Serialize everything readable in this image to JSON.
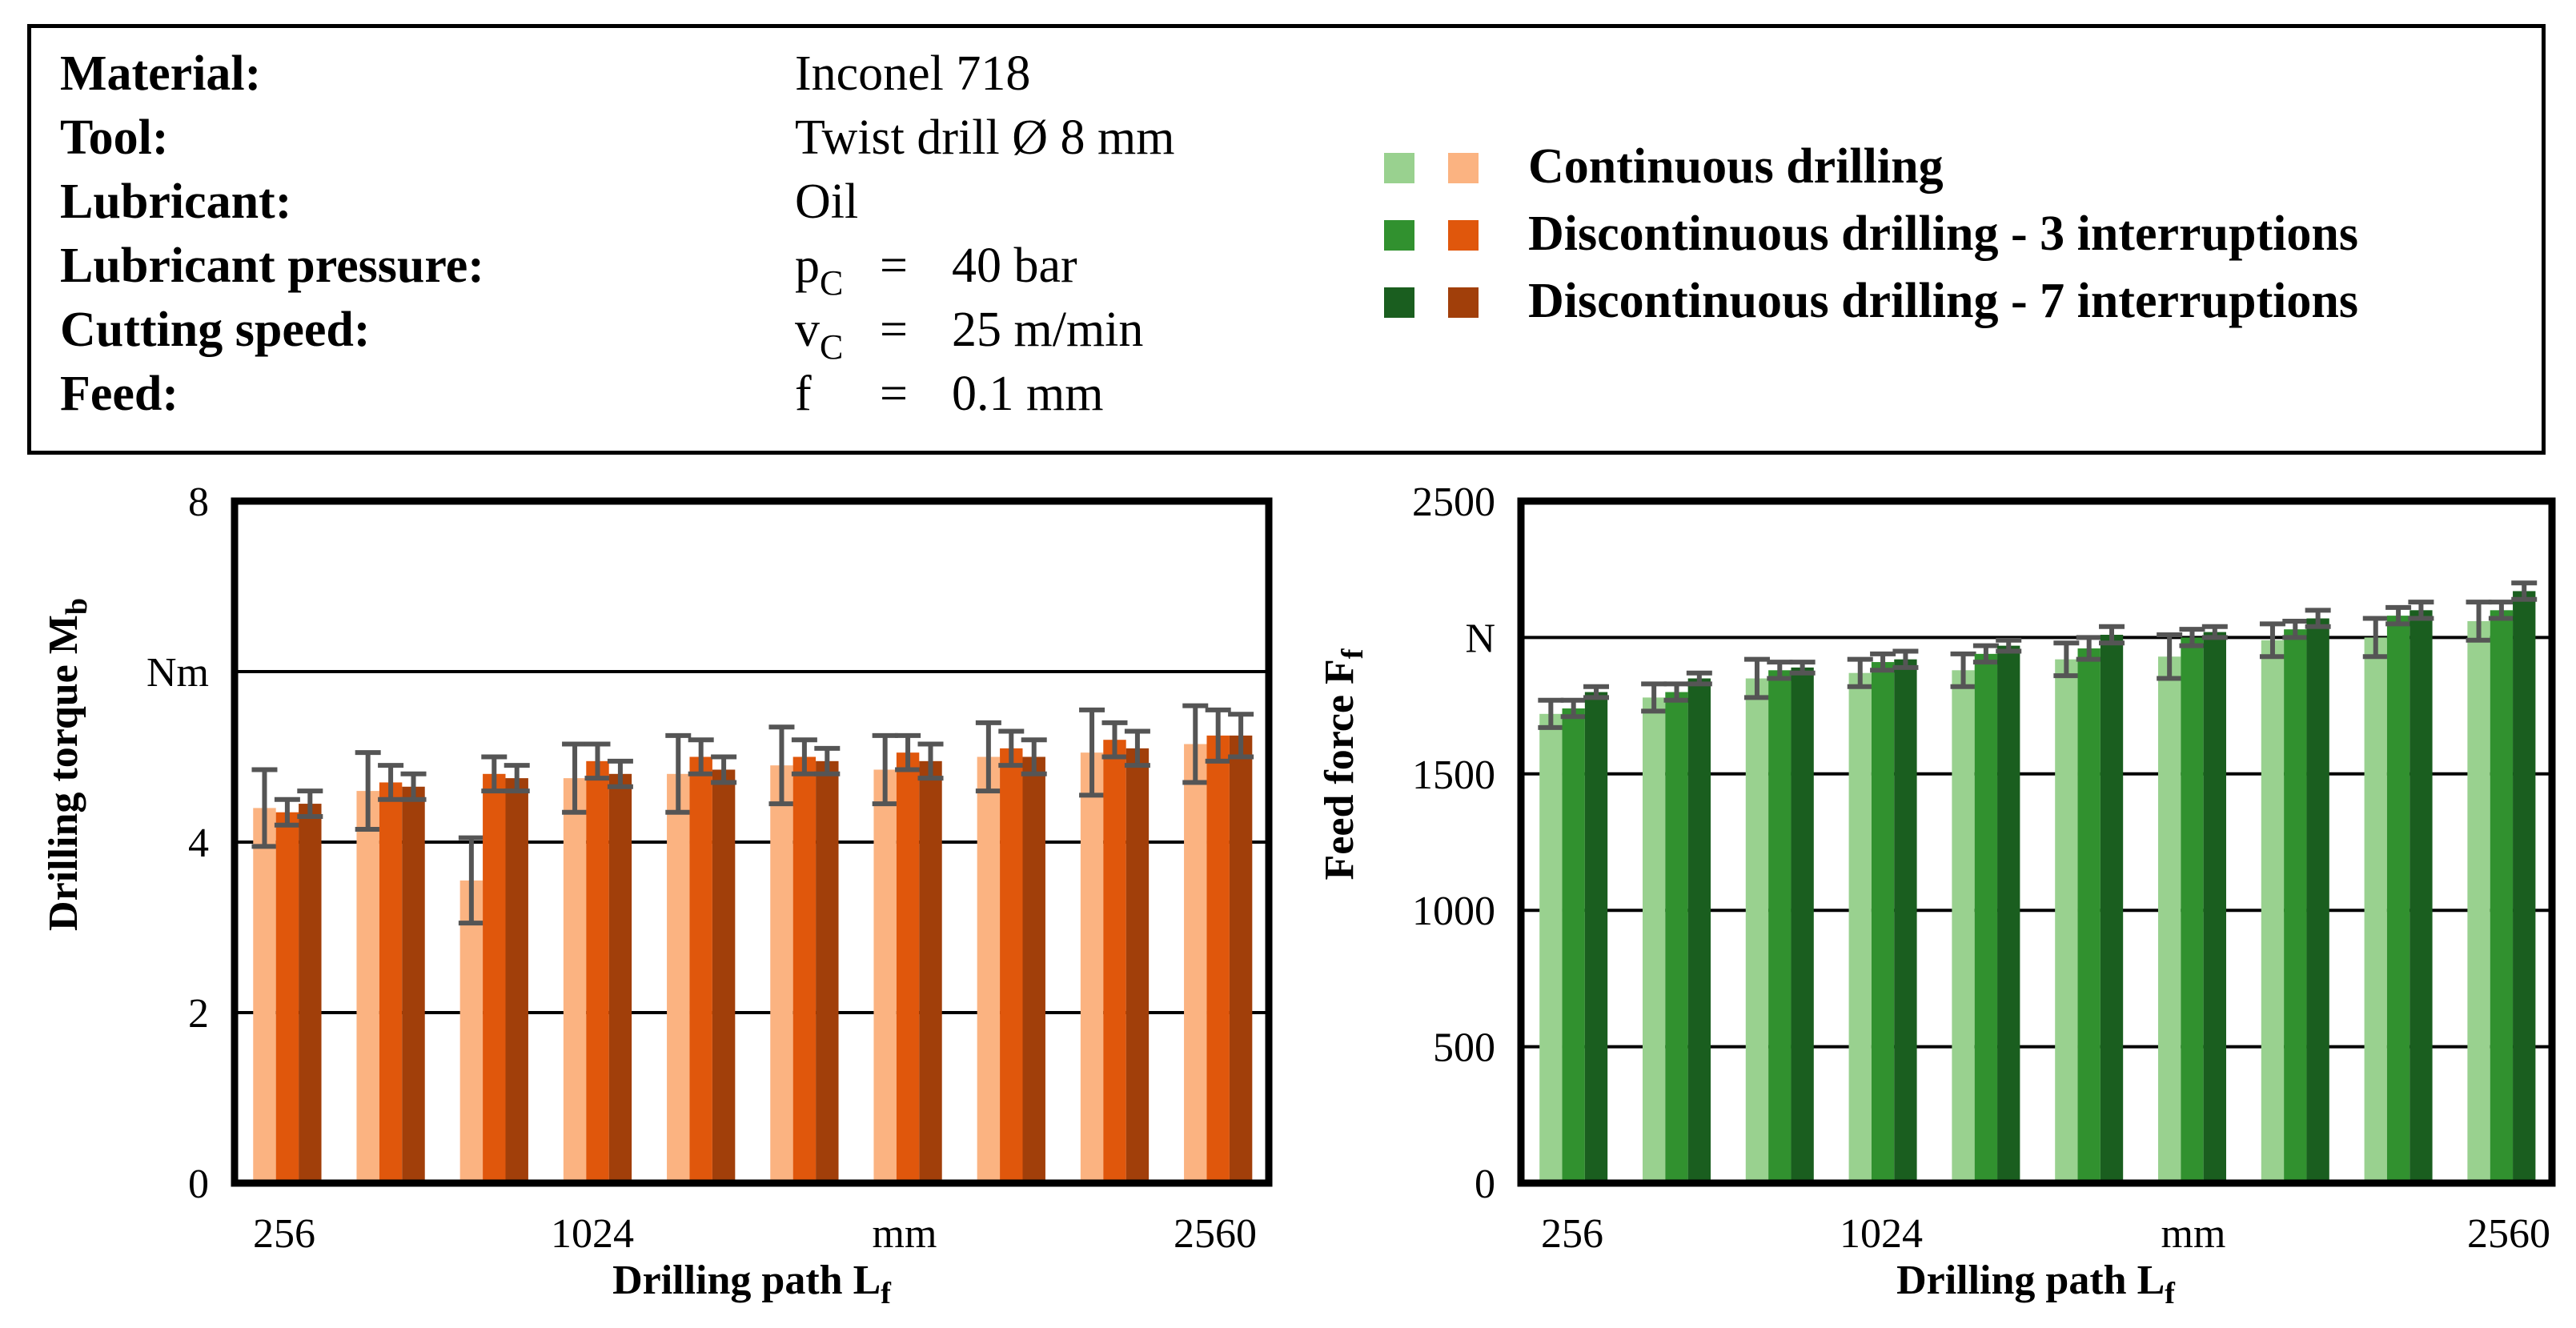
{
  "info": {
    "rows": [
      {
        "label": "Material:",
        "value": "Inconel 718"
      },
      {
        "label": "Tool:",
        "value": "Twist drill Ø 8 mm"
      },
      {
        "label": "Lubricant:",
        "value": "Oil"
      },
      {
        "label": "Lubricant pressure:",
        "sym": "p",
        "sub": "C",
        "eq": "=",
        "value": "40 bar"
      },
      {
        "label": "Cutting speed:",
        "sym": "v",
        "sub": "C",
        "eq": "=",
        "value": "25 m/min"
      },
      {
        "label": "Feed:",
        "sym": "f",
        "sub": "",
        "eq": "=",
        "value": "0.1 mm"
      }
    ]
  },
  "legend": [
    {
      "label": "Continuous drilling",
      "green": "#99d18f",
      "orange": "#fbb381"
    },
    {
      "label": "Discontinuous drilling - 3 interruptions",
      "green": "#31912f",
      "orange": "#e0570c"
    },
    {
      "label": "Discontinuous drilling - 7 interruptions",
      "green": "#1a5e1f",
      "orange": "#a13f0a"
    }
  ],
  "chart_data": [
    {
      "type": "bar",
      "title": "",
      "xlabel": "Drilling path L",
      "xlabel_sub": "f",
      "ylabel": "Drilling torque M",
      "ylabel_sub": "b",
      "ylim": [
        0,
        8
      ],
      "yticks": [
        "0",
        "2",
        "4",
        "Nm",
        "8"
      ],
      "xticks": [
        "256",
        "1024",
        "mm",
        "2560"
      ],
      "groups": 10,
      "series": [
        {
          "name": "Continuous drilling",
          "color": "#fbb381",
          "values": [
            4.4,
            4.6,
            3.55,
            4.75,
            4.8,
            4.9,
            4.85,
            5.0,
            5.05,
            5.15
          ],
          "errors": [
            0.45,
            0.45,
            0.5,
            0.4,
            0.45,
            0.45,
            0.4,
            0.4,
            0.5,
            0.45
          ]
        },
        {
          "name": "Discontinuous drilling - 3 interruptions",
          "color": "#e0570c",
          "values": [
            4.35,
            4.7,
            4.8,
            4.95,
            5.0,
            5.0,
            5.05,
            5.1,
            5.2,
            5.25
          ],
          "errors": [
            0.15,
            0.2,
            0.2,
            0.2,
            0.2,
            0.2,
            0.2,
            0.2,
            0.2,
            0.3
          ]
        },
        {
          "name": "Discontinuous drilling - 7 interruptions",
          "color": "#a13f0a",
          "values": [
            4.45,
            4.65,
            4.75,
            4.8,
            4.85,
            4.95,
            4.95,
            5.0,
            5.1,
            5.25
          ],
          "errors": [
            0.15,
            0.15,
            0.15,
            0.15,
            0.15,
            0.15,
            0.2,
            0.2,
            0.2,
            0.25
          ]
        }
      ]
    },
    {
      "type": "bar",
      "title": "",
      "xlabel": "Drilling path L",
      "xlabel_sub": "f",
      "ylabel": "Feed force F",
      "ylabel_sub": "f",
      "ylim": [
        0,
        2500
      ],
      "yticks": [
        "0",
        "500",
        "1000",
        "1500",
        "N",
        "2500"
      ],
      "xticks": [
        "256",
        "1024",
        "mm",
        "2560"
      ],
      "groups": 10,
      "series": [
        {
          "name": "Continuous drilling",
          "color": "#99d18f",
          "values": [
            1720,
            1780,
            1850,
            1870,
            1880,
            1920,
            1930,
            1990,
            2000,
            2060
          ],
          "errors": [
            50,
            50,
            70,
            50,
            60,
            60,
            80,
            60,
            70,
            70
          ]
        },
        {
          "name": "Discontinuous drilling - 3 interruptions",
          "color": "#31912f",
          "values": [
            1740,
            1800,
            1880,
            1910,
            1940,
            1960,
            2000,
            2030,
            2080,
            2100
          ],
          "errors": [
            30,
            30,
            30,
            30,
            30,
            40,
            30,
            30,
            30,
            30
          ]
        },
        {
          "name": "Discontinuous drilling - 7 interruptions",
          "color": "#1a5e1f",
          "values": [
            1800,
            1850,
            1890,
            1920,
            1970,
            2010,
            2020,
            2070,
            2100,
            2170
          ],
          "errors": [
            20,
            20,
            20,
            30,
            20,
            30,
            20,
            30,
            30,
            30
          ]
        }
      ]
    }
  ]
}
